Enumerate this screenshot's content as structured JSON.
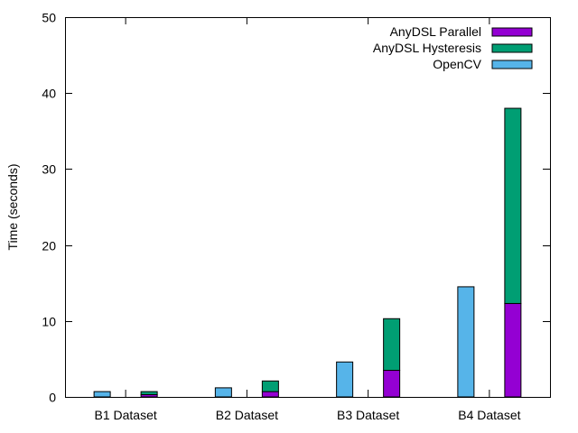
{
  "chart_data": {
    "type": "bar",
    "title": "",
    "xlabel": "",
    "ylabel": "Time (seconds)",
    "ylim": [
      0,
      50
    ],
    "yticks": [
      0,
      10,
      20,
      30,
      40,
      50
    ],
    "grid": false,
    "legend_position": "top-right",
    "categories": [
      "B1 Dataset",
      "B2 Dataset",
      "B3 Dataset",
      "B4 Dataset"
    ],
    "series": [
      {
        "name": "OpenCV",
        "group": "OpenCV",
        "color": "#56b4e9",
        "values": [
          0.7,
          1.2,
          4.6,
          14.5
        ]
      },
      {
        "name": "AnyDSL Parallel",
        "group": "AnyDSL",
        "color": "#9400d3",
        "values": [
          0.3,
          0.7,
          3.5,
          12.3
        ]
      },
      {
        "name": "AnyDSL Hysteresis",
        "group": "AnyDSL",
        "color": "#009e73",
        "values": [
          0.4,
          1.4,
          6.8,
          25.7
        ]
      }
    ],
    "legend": [
      "AnyDSL Parallel",
      "AnyDSL Hysteresis",
      "OpenCV"
    ]
  }
}
